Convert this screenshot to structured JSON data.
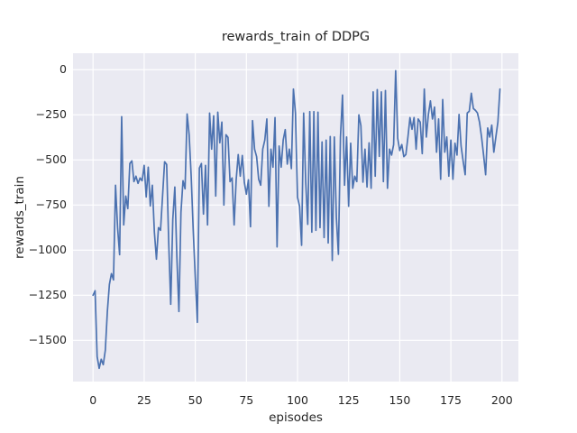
{
  "colors": {
    "line": "#4c72b0",
    "plot_background": "#eaeaf2",
    "grid": "#ffffff",
    "figure_background": "#ffffff",
    "text": "#262626"
  },
  "chart_data": {
    "type": "line",
    "title": "rewards_train of DDPG",
    "xlabel": "episodes",
    "ylabel": "rewards_train",
    "legend": "none",
    "grid": true,
    "style": "seaborn-darkgrid",
    "x_ticks": [
      0,
      25,
      50,
      75,
      100,
      125,
      150,
      175,
      200
    ],
    "x_tick_labels": [
      "0",
      "25",
      "50",
      "75",
      "100",
      "125",
      "150",
      "175",
      "200"
    ],
    "y_ticks": [
      0,
      -250,
      -500,
      -750,
      -1000,
      -1250,
      -1500
    ],
    "y_tick_labels": [
      "0",
      "−250",
      "−500",
      "−750",
      "−1000",
      "−1250",
      "−1500"
    ],
    "xlim": [
      -10,
      209
    ],
    "ylim": [
      -1735,
      90
    ],
    "x": {
      "start": 0,
      "step": 1
    },
    "series": [
      {
        "name": "rewards_train",
        "values": [
          -1250,
          -1225,
          -1590,
          -1655,
          -1605,
          -1635,
          -1555,
          -1340,
          -1190,
          -1130,
          -1165,
          -640,
          -875,
          -1025,
          -260,
          -860,
          -700,
          -770,
          -520,
          -505,
          -620,
          -590,
          -630,
          -600,
          -615,
          -530,
          -705,
          -540,
          -755,
          -640,
          -900,
          -1050,
          -875,
          -890,
          -700,
          -510,
          -525,
          -955,
          -1300,
          -830,
          -650,
          -1040,
          -1340,
          -790,
          -615,
          -660,
          -245,
          -360,
          -590,
          -890,
          -1150,
          -1400,
          -545,
          -520,
          -800,
          -530,
          -860,
          -240,
          -440,
          -255,
          -700,
          -235,
          -405,
          -290,
          -750,
          -360,
          -375,
          -620,
          -600,
          -860,
          -610,
          -470,
          -590,
          -475,
          -625,
          -690,
          -610,
          -870,
          -282,
          -440,
          -482,
          -607,
          -640,
          -440,
          -390,
          -273,
          -757,
          -440,
          -540,
          -265,
          -982,
          -423,
          -540,
          -390,
          -332,
          -523,
          -440,
          -548,
          -107,
          -240,
          -707,
          -757,
          -973,
          -240,
          -620,
          -857,
          -232,
          -900,
          -232,
          -890,
          -235,
          -875,
          -400,
          -930,
          -390,
          -960,
          -370,
          -1057,
          -373,
          -820,
          -1023,
          -373,
          -140,
          -640,
          -373,
          -757,
          -407,
          -657,
          -590,
          -620,
          -250,
          -310,
          -623,
          -440,
          -650,
          -405,
          -657,
          -123,
          -590,
          -110,
          -480,
          -123,
          -620,
          -115,
          -657,
          -440,
          -473,
          -415,
          -5,
          -380,
          -448,
          -415,
          -482,
          -470,
          -373,
          -265,
          -330,
          -265,
          -440,
          -273,
          -290,
          -465,
          -107,
          -373,
          -248,
          -173,
          -273,
          -207,
          -457,
          -273,
          -607,
          -165,
          -457,
          -373,
          -590,
          -390,
          -607,
          -407,
          -473,
          -248,
          -423,
          -507,
          -582,
          -240,
          -230,
          -130,
          -215,
          -225,
          -240,
          -290,
          -373,
          -473,
          -582,
          -323,
          -373,
          -307,
          -457,
          -373,
          -290,
          -107
        ]
      }
    ]
  }
}
